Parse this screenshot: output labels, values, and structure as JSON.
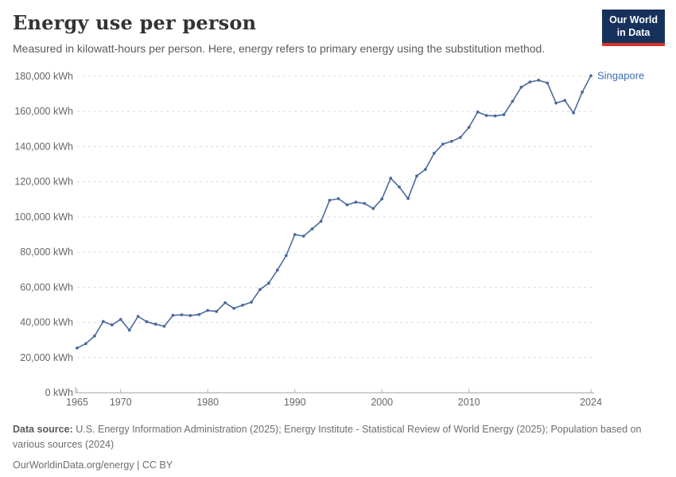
{
  "header": {
    "title": "Energy use per person",
    "subtitle": "Measured in kilowatt-hours per person. Here, energy refers to primary energy using the substitution method."
  },
  "logo": {
    "line1": "Our World",
    "line2": "in Data",
    "bg_color": "#16325c",
    "accent_color": "#d5352c"
  },
  "chart_data": {
    "type": "line",
    "title": "Energy use per person",
    "unit": "kWh",
    "x": [
      1965,
      1966,
      1967,
      1968,
      1969,
      1970,
      1971,
      1972,
      1973,
      1974,
      1975,
      1976,
      1977,
      1978,
      1979,
      1980,
      1981,
      1982,
      1983,
      1984,
      1985,
      1986,
      1987,
      1988,
      1989,
      1990,
      1991,
      1992,
      1993,
      1994,
      1995,
      1996,
      1997,
      1998,
      1999,
      2000,
      2001,
      2002,
      2003,
      2004,
      2005,
      2006,
      2007,
      2008,
      2009,
      2010,
      2011,
      2012,
      2013,
      2014,
      2015,
      2016,
      2017,
      2018,
      2019,
      2020,
      2021,
      2022,
      2023,
      2024
    ],
    "series": [
      {
        "name": "Singapore",
        "color": "#4c6a9c",
        "label_color": "#3d6cb3",
        "values": [
          25400,
          27900,
          32300,
          40500,
          38600,
          41700,
          35600,
          43400,
          40400,
          39000,
          37800,
          44000,
          44300,
          43900,
          44500,
          46800,
          46200,
          51200,
          48000,
          49800,
          51500,
          58700,
          62300,
          69800,
          78000,
          90000,
          89100,
          93200,
          97500,
          109500,
          110400,
          106900,
          108400,
          107700,
          104800,
          110200,
          122000,
          117000,
          110500,
          123300,
          127100,
          136200,
          141400,
          143000,
          145200,
          151000,
          159700,
          157700,
          157500,
          158200,
          165800,
          173800,
          176800,
          177800,
          176200,
          164800,
          166300,
          159200,
          171000,
          180300
        ]
      }
    ],
    "xlabel": "",
    "ylabel": "",
    "xlim": [
      1965,
      2024
    ],
    "ylim": [
      0,
      180000
    ],
    "ytick_step": 20000,
    "ytick_suffix": " kWh",
    "yticks_labels": [
      "0 kWh",
      "20,000 kWh",
      "40,000 kWh",
      "60,000 kWh",
      "80,000 kWh",
      "100,000 kWh",
      "120,000 kWh",
      "140,000 kWh",
      "160,000 kWh",
      "180,000 kWh"
    ],
    "xticks": [
      1965,
      1970,
      1980,
      1990,
      2000,
      2010,
      2024
    ],
    "grid": "horizontal-dotted",
    "legend_position": "end-of-line"
  },
  "footer": {
    "source_label": "Data source:",
    "source_text": " U.S. Energy Information Administration (2025); Energy Institute - Statistical Review of World Energy (2025); Population based on various sources (2024)",
    "link": "OurWorldinData.org/energy",
    "separator": " | ",
    "license": "CC BY"
  }
}
